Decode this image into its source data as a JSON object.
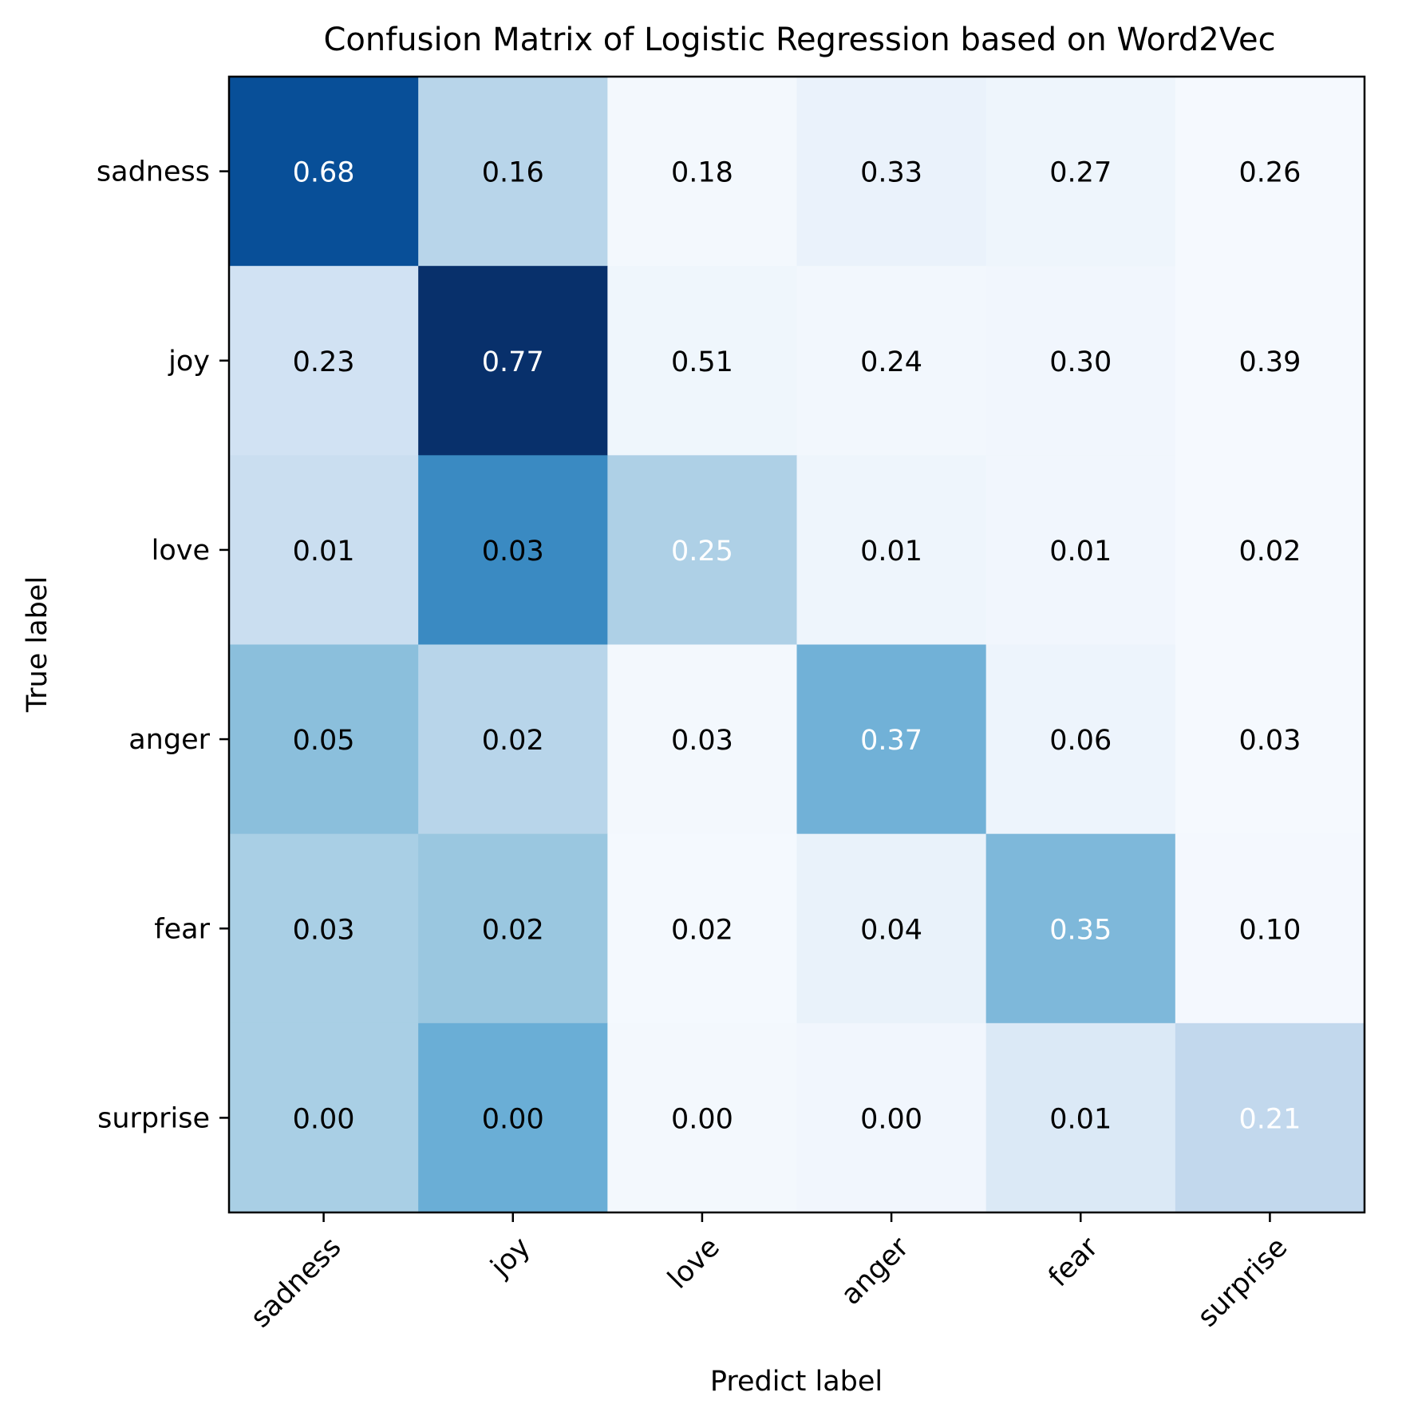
{
  "chart_data": {
    "type": "heatmap",
    "title": "Confusion Matrix of Logistic Regression based on Word2Vec",
    "xlabel": "Predict label",
    "ylabel": "True label",
    "row_labels": [
      "sadness",
      "joy",
      "love",
      "anger",
      "fear",
      "surprise"
    ],
    "col_labels": [
      "sadness",
      "joy",
      "love",
      "anger",
      "fear",
      "surprise"
    ],
    "values": [
      [
        0.68,
        0.16,
        0.18,
        0.33,
        0.27,
        0.26
      ],
      [
        0.23,
        0.77,
        0.51,
        0.24,
        0.3,
        0.39
      ],
      [
        0.01,
        0.03,
        0.25,
        0.01,
        0.01,
        0.02
      ],
      [
        0.05,
        0.02,
        0.03,
        0.37,
        0.06,
        0.03
      ],
      [
        0.03,
        0.02,
        0.02,
        0.04,
        0.35,
        0.1
      ],
      [
        0.0,
        0.0,
        0.0,
        0.0,
        0.01,
        0.21
      ]
    ],
    "cell_labels": [
      [
        "0.68",
        "0.16",
        "0.18",
        "0.33",
        "0.27",
        "0.26"
      ],
      [
        "0.23",
        "0.77",
        "0.51",
        "0.24",
        "0.30",
        "0.39"
      ],
      [
        "0.01",
        "0.03",
        "0.25",
        "0.01",
        "0.01",
        "0.02"
      ],
      [
        "0.05",
        "0.02",
        "0.03",
        "0.37",
        "0.06",
        "0.03"
      ],
      [
        "0.03",
        "0.02",
        "0.02",
        "0.04",
        "0.35",
        "0.10"
      ],
      [
        "0.00",
        "0.00",
        "0.00",
        "0.00",
        "0.01",
        "0.21"
      ]
    ],
    "cell_colors": [
      [
        "#084f98",
        "#b8d5ea",
        "#f3f8fd",
        "#eaf2fb",
        "#eef5fc",
        "#f5f9fe"
      ],
      [
        "#d1e2f3",
        "#08306b",
        "#eff6fc",
        "#f2f7fd",
        "#f1f6fd",
        "#f5f9fe"
      ],
      [
        "#cadef0",
        "#3a8ac2",
        "#aed0e6",
        "#eef5fc",
        "#f1f6fd",
        "#f5f9fe"
      ],
      [
        "#8bbfdc",
        "#b8d5ea",
        "#f3f8fd",
        "#71b1d7",
        "#edf4fc",
        "#f5f9fe"
      ],
      [
        "#a9cfe5",
        "#9ac7e0",
        "#f4f9fe",
        "#e9f2fa",
        "#7eb8da",
        "#f4f8fe"
      ],
      [
        "#a9cfe5",
        "#6aaed6",
        "#f3f8fd",
        "#f1f6fd",
        "#dbe9f6",
        "#c2d8ed"
      ]
    ],
    "text_colors": [
      [
        "#ffffff",
        "#000000",
        "#000000",
        "#000000",
        "#000000",
        "#000000"
      ],
      [
        "#000000",
        "#ffffff",
        "#000000",
        "#000000",
        "#000000",
        "#000000"
      ],
      [
        "#000000",
        "#000000",
        "#ffffff",
        "#000000",
        "#000000",
        "#000000"
      ],
      [
        "#000000",
        "#000000",
        "#000000",
        "#ffffff",
        "#000000",
        "#000000"
      ],
      [
        "#000000",
        "#000000",
        "#000000",
        "#000000",
        "#ffffff",
        "#000000"
      ],
      [
        "#000000",
        "#000000",
        "#000000",
        "#000000",
        "#000000",
        "#ffffff"
      ]
    ],
    "colormap": "Blues",
    "grid": false
  }
}
